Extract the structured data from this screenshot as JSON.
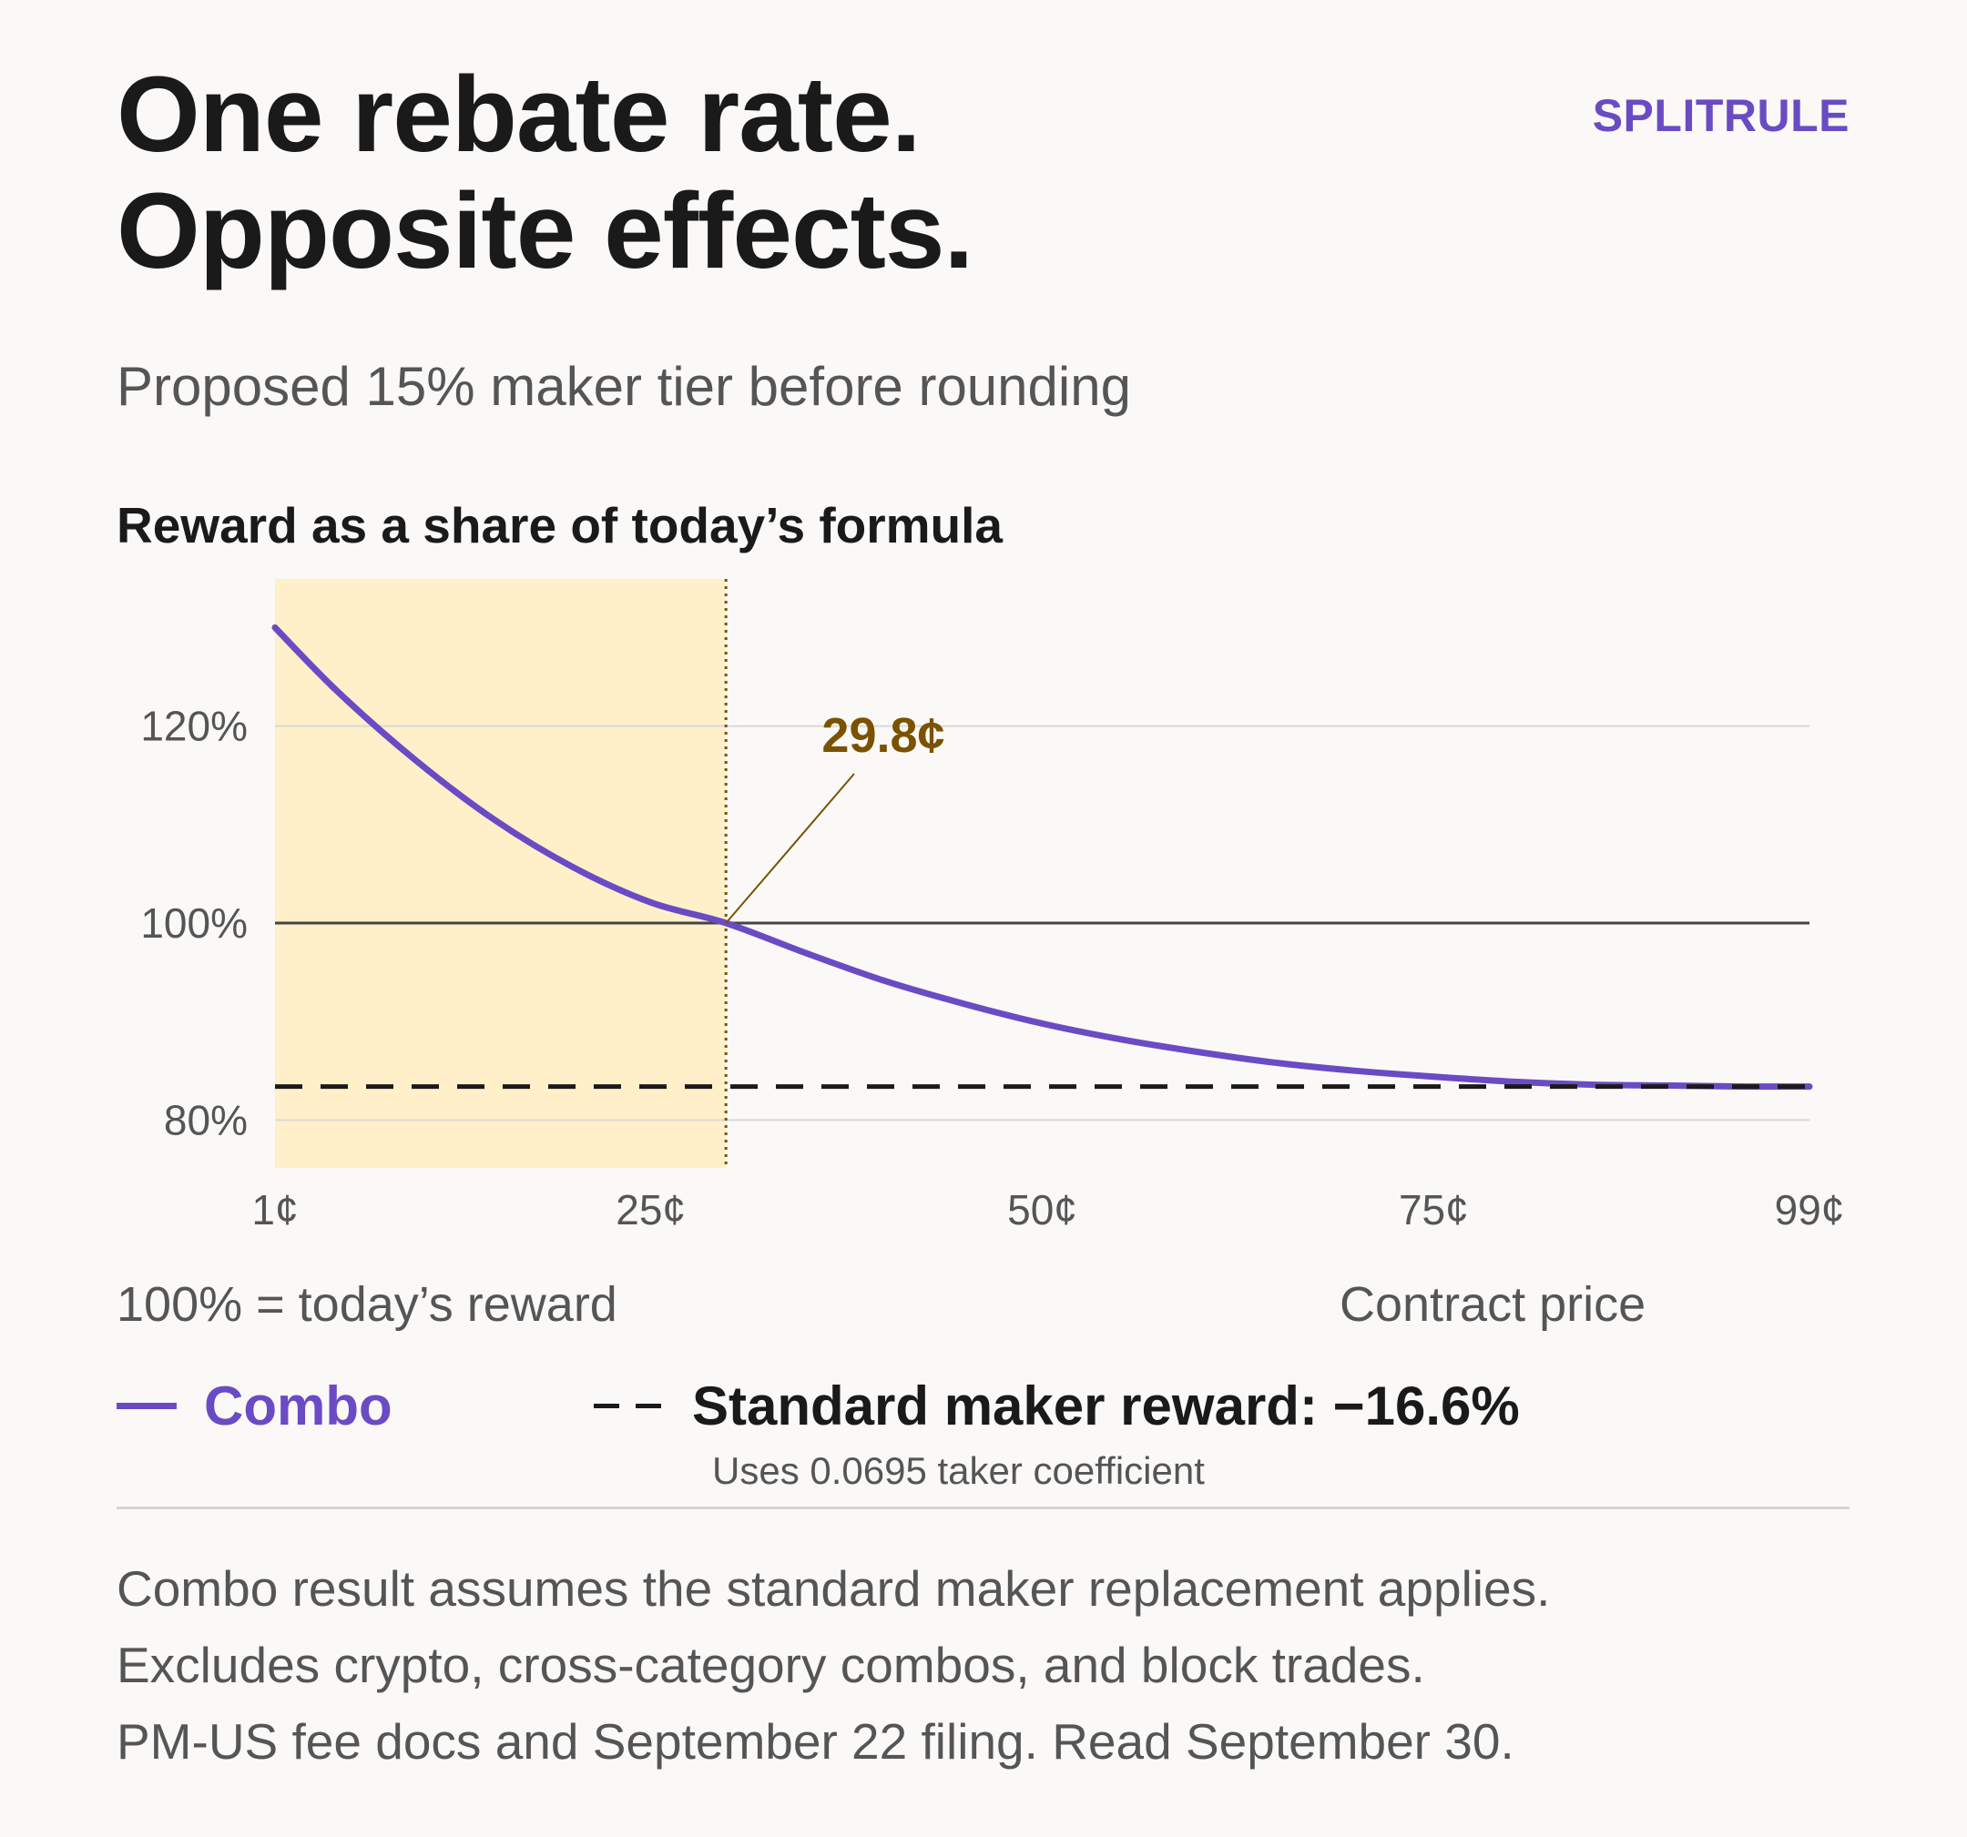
{
  "brand": "SPLITRULE",
  "title_line1": "One rebate rate.",
  "title_line2": "Opposite effects.",
  "subtitle": "Proposed 15% maker tier before rounding",
  "chart_title": "Reward as a share of today’s formula",
  "y_axis_note": "100% = today’s reward",
  "x_axis_note": "Contract price",
  "legend": {
    "combo_label": "Combo",
    "standard_label": "Standard maker reward: −16.6%",
    "standard_note": "Uses 0.0695 taker coefficient"
  },
  "footnotes": [
    "Combo result assumes the standard maker replacement applies.",
    "Excludes crypto, cross-category combos, and block trades.",
    "PM-US fee docs and September 22 filing. Read September 30."
  ],
  "colors": {
    "combo": "#6a4bc4",
    "standard": "#1a1a1a",
    "highlight": "#fff0c9",
    "crossover": "#7a5200",
    "reference": "#444444",
    "grid": "#d9d9d9"
  },
  "chart_data": {
    "type": "line",
    "title": "Reward as a share of today’s formula",
    "xlabel": "Contract price",
    "ylabel": "100% = today’s reward",
    "xlim": [
      1,
      99
    ],
    "ylim": [
      75,
      135
    ],
    "x_ticks": [
      {
        "value": 1,
        "label": "1¢"
      },
      {
        "value": 25,
        "label": "25¢"
      },
      {
        "value": 50,
        "label": "50¢"
      },
      {
        "value": 75,
        "label": "75¢"
      },
      {
        "value": 99,
        "label": "99¢"
      }
    ],
    "y_ticks": [
      {
        "value": 80,
        "label": "80%"
      },
      {
        "value": 100,
        "label": "100%"
      },
      {
        "value": 120,
        "label": "120%"
      }
    ],
    "grid": true,
    "series": [
      {
        "name": "Combo",
        "style": "solid",
        "x": [
          1,
          5,
          10,
          15,
          20,
          25,
          29.8,
          35,
          40,
          45,
          50,
          55,
          60,
          65,
          70,
          75,
          80,
          85,
          90,
          95,
          99
        ],
        "y": [
          130,
          123.5,
          116.5,
          110.5,
          105.7,
          102.1,
          100,
          96.9,
          94.1,
          91.8,
          89.8,
          88.2,
          86.9,
          85.8,
          85.0,
          84.4,
          83.9,
          83.6,
          83.5,
          83.4,
          83.4
        ]
      },
      {
        "name": "Standard maker reward: −16.6%",
        "style": "dashed",
        "x": [
          1,
          99
        ],
        "y": [
          83.4,
          83.4
        ]
      }
    ],
    "reference_line": {
      "y": 100
    },
    "highlight_region": {
      "x_start": 1,
      "x_end": 29.8
    },
    "annotations": [
      {
        "text": "29.8¢",
        "x": 29.8,
        "y": 100
      }
    ]
  }
}
